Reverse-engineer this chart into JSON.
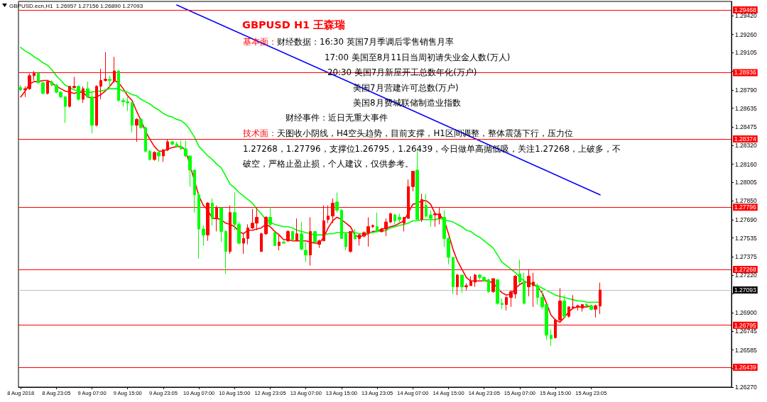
{
  "chart_data": {
    "type": "candlestick",
    "title": "GBPUSD H1 王森瑞",
    "annotations": [
      "GBPUSD.ecn,H1  1.26957 1.27156 1.26890 1.27093",
      "基本面：",
      "财经数据：16:30 英国7月季调后零售销售月率",
      "17:00 美国至8月11日当周初请失业金人数(万人)",
      "20:30 美国7月新屋开工总数年化(万户)",
      "美国7月营建许可总数(万户)",
      "美国8月费城联储制造业指数",
      "财经事件：近日无重大事件",
      "技术面：",
      "天图收小阴线，H4空头趋势，目前支撑，H1区间调整，整体震荡下行，压力位",
      "1.27268，1.27796，支撑位1.26795，1.26439，今日做单高抛低吸，关注1.27268，上破多，不",
      "破空，严格止盈止损，个人建议，仅供参考。"
    ],
    "categories": [
      "8 Aug 2018",
      null,
      null,
      null,
      null,
      null,
      null,
      null,
      "8 Aug 23:05",
      null,
      null,
      null,
      null,
      null,
      null,
      null,
      "9 Aug 07:00",
      null,
      null,
      null,
      null,
      null,
      null,
      null,
      "9 Aug 15:00",
      null,
      null,
      null,
      null,
      null,
      null,
      null,
      "9 Aug 23:05",
      null,
      null,
      null,
      null,
      null,
      null,
      null,
      "10 Aug 07:00",
      null,
      null,
      null,
      null,
      null,
      null,
      null,
      "10 Aug 15:00",
      null,
      null,
      null,
      null,
      null,
      null,
      null,
      "12 Aug 23:05",
      null,
      null,
      null,
      null,
      null,
      null,
      null,
      "13 Aug 07:00",
      null,
      null,
      null,
      null,
      null,
      null,
      null,
      "13 Aug 15:00",
      null,
      null,
      null,
      null,
      null,
      null,
      null,
      "13 Aug 23:05",
      null,
      null,
      null,
      null,
      null,
      null,
      null,
      "14 Aug 07:00",
      null,
      null,
      null,
      null,
      null,
      null,
      null,
      "14 Aug 15:00",
      null,
      null,
      null,
      null,
      null,
      null,
      null,
      "14 Aug 23:05",
      null,
      null,
      null,
      null,
      null,
      null,
      null,
      "15 Aug 07:00",
      null,
      null,
      null,
      null,
      null,
      null,
      null,
      "15 Aug 15:00",
      null,
      null,
      null,
      null,
      null,
      null,
      null,
      "15 Aug 23:05",
      null,
      null,
      null,
      null,
      null,
      null,
      null,
      null,
      null,
      null,
      null,
      null,
      null,
      null,
      null,
      null,
      null,
      null,
      null,
      null,
      null,
      null,
      null,
      null,
      null,
      null,
      null,
      null,
      null,
      null,
      null
    ],
    "ohlc": [
      [
        1.2881,
        1.2883,
        1.2878,
        1.2879
      ],
      [
        1.2879,
        1.2882,
        1.2873,
        1.288
      ],
      [
        1.288,
        1.2893,
        1.2879,
        1.2891
      ],
      [
        1.2891,
        1.2895,
        1.2887,
        1.2893
      ],
      [
        1.2893,
        1.2894,
        1.2884,
        1.2885
      ],
      [
        1.2885,
        1.2886,
        1.2875,
        1.2876
      ],
      [
        1.2876,
        1.2887,
        1.2875,
        1.2886
      ],
      [
        1.2886,
        1.2887,
        1.2882,
        1.2883
      ],
      [
        1.2883,
        1.2884,
        1.2876,
        1.2877
      ],
      [
        1.2877,
        1.2878,
        1.2872,
        1.2873
      ],
      [
        1.2873,
        1.2874,
        1.2851,
        1.2865
      ],
      [
        1.2865,
        1.2882,
        1.2864,
        1.2882
      ],
      [
        1.2881,
        1.289,
        1.288,
        1.2882
      ],
      [
        1.2882,
        1.2883,
        1.287,
        1.2871
      ],
      [
        1.2871,
        1.2882,
        1.2868,
        1.288
      ],
      [
        1.288,
        1.2886,
        1.2872,
        1.2873
      ],
      [
        1.2873,
        1.2878,
        1.2842,
        1.2849
      ],
      [
        1.2849,
        1.2883,
        1.2848,
        1.2882
      ],
      [
        1.2882,
        1.2897,
        1.2871,
        1.2887
      ],
      [
        1.2887,
        1.2911,
        1.2886,
        1.2888
      ],
      [
        1.2888,
        1.2891,
        1.2881,
        1.2887
      ],
      [
        1.2887,
        1.2907,
        1.2885,
        1.2895
      ],
      [
        1.2895,
        1.2896,
        1.2869,
        1.287
      ],
      [
        1.287,
        1.2872,
        1.2865,
        1.2869
      ],
      [
        1.2869,
        1.2873,
        1.2861,
        1.2868
      ],
      [
        1.2868,
        1.2869,
        1.2843,
        1.2849
      ],
      [
        1.2849,
        1.2855,
        1.2835,
        1.2854
      ],
      [
        1.2854,
        1.2855,
        1.2846,
        1.2847
      ],
      [
        1.2847,
        1.2848,
        1.2826,
        1.2827
      ],
      [
        1.2827,
        1.2828,
        1.2819,
        1.282
      ],
      [
        1.282,
        1.2827,
        1.2819,
        1.2826
      ],
      [
        1.2826,
        1.2828,
        1.2818,
        1.2823
      ],
      [
        1.2823,
        1.2829,
        1.2818,
        1.2828
      ],
      [
        1.2828,
        1.2837,
        1.2827,
        1.2835
      ],
      [
        1.2835,
        1.2836,
        1.2832,
        1.2833
      ],
      [
        1.2833,
        1.2835,
        1.283,
        1.2831
      ],
      [
        1.2831,
        1.2836,
        1.2828,
        1.2829
      ],
      [
        1.2829,
        1.2836,
        1.2822,
        1.2823
      ],
      [
        1.2823,
        1.2823,
        1.2797,
        1.2811
      ],
      [
        1.2811,
        1.2811,
        1.2775,
        1.279
      ],
      [
        1.279,
        1.2792,
        1.2736,
        1.2761
      ],
      [
        1.2761,
        1.2764,
        1.2747,
        1.2756
      ],
      [
        1.2756,
        1.2784,
        1.2751,
        1.2783
      ],
      [
        1.2783,
        1.2787,
        1.2764,
        1.277
      ],
      [
        1.277,
        1.2781,
        1.2759,
        1.2779
      ],
      [
        1.2779,
        1.2779,
        1.275,
        1.2759
      ],
      [
        1.2759,
        1.276,
        1.2723,
        1.2742
      ],
      [
        1.2742,
        1.2781,
        1.274,
        1.2775
      ],
      [
        1.2775,
        1.2792,
        1.276,
        1.2765
      ],
      [
        1.2765,
        1.2767,
        1.2748,
        1.2749
      ],
      [
        1.2749,
        1.2757,
        1.274,
        1.2753
      ],
      [
        1.2753,
        1.2765,
        1.2748,
        1.2762
      ],
      [
        1.2762,
        1.2778,
        1.2761,
        1.2766
      ],
      [
        1.2766,
        1.2779,
        1.276,
        1.2771
      ],
      [
        1.2742,
        1.2758,
        1.2742,
        1.2757
      ],
      [
        1.2757,
        1.2772,
        1.2756,
        1.2771
      ],
      [
        1.2771,
        1.278,
        1.2763,
        1.2765
      ],
      [
        1.2758,
        1.2759,
        1.2747,
        1.2747
      ],
      [
        1.2747,
        1.2757,
        1.2743,
        1.275
      ],
      [
        1.275,
        1.2751,
        1.2749,
        1.2749
      ],
      [
        1.2751,
        1.276,
        1.275,
        1.2759
      ],
      [
        1.2759,
        1.2759,
        1.2751,
        1.2752
      ],
      [
        1.2751,
        1.277,
        1.2751,
        1.2757
      ],
      [
        1.2757,
        1.2767,
        1.2743,
        1.2744
      ],
      [
        1.2743,
        1.275,
        1.2733,
        1.2739
      ],
      [
        1.2739,
        1.2771,
        1.273,
        1.2759
      ],
      [
        1.2759,
        1.2759,
        1.2749,
        1.275
      ],
      [
        1.2748,
        1.2752,
        1.2745,
        1.2751
      ],
      [
        1.2751,
        1.2781,
        1.2751,
        1.2768
      ],
      [
        1.2769,
        1.2781,
        1.2766,
        1.2772
      ],
      [
        1.2772,
        1.2787,
        1.2766,
        1.2783
      ],
      [
        1.2784,
        1.2792,
        1.2775,
        1.2777
      ],
      [
        1.2777,
        1.2778,
        1.2753,
        1.2753
      ],
      [
        1.2757,
        1.2758,
        1.2743,
        1.2746
      ],
      [
        1.2742,
        1.2759,
        1.2741,
        1.2759
      ],
      [
        1.2756,
        1.2761,
        1.2752,
        1.2753
      ],
      [
        1.2753,
        1.2757,
        1.2747,
        1.2756
      ],
      [
        1.2755,
        1.2759,
        1.2754,
        1.2758
      ],
      [
        1.2758,
        1.2771,
        1.2746,
        1.2763
      ],
      [
        1.2763,
        1.2765,
        1.2762,
        1.2764
      ],
      [
        1.2763,
        1.2775,
        1.2759,
        1.2759
      ],
      [
        1.2759,
        1.2762,
        1.2758,
        1.2761
      ],
      [
        1.2761,
        1.277,
        1.2755,
        1.2767
      ],
      [
        1.2767,
        1.2775,
        1.2766,
        1.2774
      ],
      [
        1.2773,
        1.2774,
        1.2765,
        1.2768
      ],
      [
        1.2771,
        1.2774,
        1.2766,
        1.2769
      ],
      [
        1.2766,
        1.2771,
        1.2759,
        1.2771
      ],
      [
        1.277,
        1.2803,
        1.277,
        1.2797
      ],
      [
        1.2797,
        1.281,
        1.2793,
        1.281
      ],
      [
        1.2811,
        1.2827,
        1.2769,
        1.2769
      ],
      [
        1.2769,
        1.2791,
        1.2767,
        1.2786
      ],
      [
        1.2781,
        1.2791,
        1.2771,
        1.2772
      ],
      [
        1.2773,
        1.2777,
        1.2763,
        1.277
      ],
      [
        1.2773,
        1.2775,
        1.2763,
        1.2774
      ],
      [
        1.277,
        1.2779,
        1.2765,
        1.2774
      ],
      [
        1.2771,
        1.2777,
        1.2746,
        1.2753
      ],
      [
        1.2753,
        1.2754,
        1.2731,
        1.2737
      ],
      [
        1.2737,
        1.2737,
        1.2706,
        1.2712
      ],
      [
        1.2712,
        1.2723,
        1.2705,
        1.2722
      ],
      [
        1.2722,
        1.2722,
        1.2707,
        1.2712
      ],
      [
        1.2712,
        1.2715,
        1.2709,
        1.2713
      ],
      [
        1.2713,
        1.2721,
        1.2713,
        1.2717
      ],
      [
        1.2716,
        1.2723,
        1.2712,
        1.2722
      ],
      [
        1.2722,
        1.2723,
        1.2718,
        1.272
      ],
      [
        1.272,
        1.2721,
        1.2717,
        1.2717
      ],
      [
        1.2718,
        1.2719,
        1.2707,
        1.2708
      ],
      [
        1.2708,
        1.2719,
        1.2707,
        1.2719
      ],
      [
        1.2718,
        1.2718,
        1.2697,
        1.2698
      ],
      [
        1.2698,
        1.2702,
        1.2693,
        1.2697
      ],
      [
        1.2697,
        1.2704,
        1.2692,
        1.2703
      ],
      [
        1.2703,
        1.2709,
        1.2695,
        1.2708
      ],
      [
        1.2706,
        1.2722,
        1.2702,
        1.2721
      ],
      [
        1.2723,
        1.2735,
        1.2714,
        1.2716
      ],
      [
        1.2716,
        1.2724,
        1.2697,
        1.2698
      ],
      [
        1.2712,
        1.2727,
        1.2704,
        1.2721
      ],
      [
        1.2713,
        1.2724,
        1.2695,
        1.2716
      ],
      [
        1.2713,
        1.2715,
        1.2697,
        1.2703
      ],
      [
        1.2703,
        1.2709,
        1.2693,
        1.2695
      ],
      [
        1.2697,
        1.2697,
        1.2667,
        1.2671
      ],
      [
        1.2671,
        1.2676,
        1.2662,
        1.2668
      ],
      [
        1.2669,
        1.2685,
        1.2668,
        1.2684
      ],
      [
        1.2684,
        1.2711,
        1.2683,
        1.27
      ],
      [
        1.27,
        1.2705,
        1.2685,
        1.2687
      ],
      [
        1.2687,
        1.2695,
        1.2686,
        1.2695
      ],
      [
        1.2694,
        1.2705,
        1.2693,
        1.2695
      ],
      [
        1.2695,
        1.2697,
        1.2692,
        1.2696
      ],
      [
        1.2694,
        1.2697,
        1.2691,
        1.2697
      ],
      [
        1.2697,
        1.2698,
        1.2695,
        1.2696
      ],
      [
        1.2696,
        1.2697,
        1.2692,
        1.2693
      ],
      [
        1.2693,
        1.2697,
        1.2686,
        1.2696
      ],
      [
        1.26957,
        1.27156,
        1.2689,
        1.27093
      ],
      null,
      null,
      null,
      null,
      null,
      null,
      null,
      null,
      null,
      null,
      null,
      null,
      null,
      null,
      null,
      null,
      null,
      null,
      null,
      null,
      null,
      null,
      null,
      null,
      null,
      null,
      null,
      null,
      null
    ],
    "colors": [
      "#00ff00",
      "#ff0000",
      "#ff0000",
      "#ff0000",
      "#00ff00",
      "#00ff00",
      "#ff0000",
      "#00ff00",
      "#00ff00",
      "#00ff00",
      "#00ff00",
      "#ff0000",
      "#ff0000",
      "#00ff00",
      "#ff0000",
      "#00ff00",
      "#00ff00",
      "#ff0000",
      "#ff0000",
      "#ff0000",
      "#00ff00",
      "#ff0000",
      "#00ff00",
      "#00ff00",
      "#00ff00",
      "#00ff00",
      "#ff0000",
      "#00ff00",
      "#00ff00",
      "#00ff00",
      "#ff0000",
      "#00ff00",
      "#ff0000",
      "#ff0000",
      "#00ff00",
      "#00ff00",
      "#00ff00",
      "#00ff00",
      "#00ff00",
      "#00ff00",
      "#00ff00",
      "#00ff00",
      "#ff0000",
      "#00ff00",
      "#ff0000",
      "#00ff00",
      "#00ff00",
      "#ff0000",
      "#00ff00",
      "#00ff00",
      "#ff0000",
      "#ff0000",
      "#ff0000",
      "#ff0000",
      "#ff0000",
      "#ff0000",
      "#00ff00",
      "#00ff00",
      "#ff0000",
      "#00ff00",
      "#ff0000",
      "#00ff00",
      "#ff0000",
      "#00ff00",
      "#00ff00",
      "#ff0000",
      "#00ff00",
      "#ff0000",
      "#ff0000",
      "#ff0000",
      "#ff0000",
      "#00ff00",
      "#00ff00",
      "#00ff00",
      "#ff0000",
      "#00ff00",
      "#ff0000",
      "#ff0000",
      "#ff0000",
      "#ff0000",
      "#00ff00",
      "#ff0000",
      "#ff0000",
      "#ff0000",
      "#00ff00",
      "#00ff00",
      "#ff0000",
      "#ff0000",
      "#ff0000",
      "#00ff00",
      "#ff0000",
      "#00ff00",
      "#00ff00",
      "#ff0000",
      "#ff0000",
      "#00ff00",
      "#00ff00",
      "#00ff00",
      "#ff0000",
      "#00ff00",
      "#ff0000",
      "#ff0000",
      "#ff0000",
      "#00ff00",
      "#00ff00",
      "#00ff00",
      "#ff0000",
      "#00ff00",
      "#00ff00",
      "#ff0000",
      "#ff0000",
      "#ff0000",
      "#00ff00",
      "#00ff00",
      "#ff0000",
      "#ff0000",
      "#00ff00",
      "#00ff00",
      "#00ff00",
      "#00ff00",
      "#ff0000",
      "#ff0000",
      "#00ff00",
      "#ff0000",
      "#ff0000",
      "#ff0000",
      "#ff0000",
      "#00ff00",
      "#00ff00",
      "#ff0000",
      "#ff0000",
      null,
      null,
      null,
      null,
      null,
      null,
      null,
      null,
      null,
      null,
      null,
      null,
      null,
      null,
      null,
      null,
      null,
      null,
      null,
      null,
      null,
      null,
      null,
      null,
      null,
      null,
      null,
      null,
      null
    ],
    "series": [
      {
        "type": "line",
        "color": "#ff0000",
        "values": [
          1.2873,
          1.2878,
          1.2884,
          1.2886,
          1.2886,
          1.2887,
          1.2887,
          1.2885,
          1.2882,
          1.288,
          1.2878,
          1.2877,
          1.2876,
          1.2877,
          1.2877,
          1.2873,
          1.2872,
          1.2873,
          1.2875,
          1.2878,
          1.2882,
          1.2887,
          1.2885,
          1.288,
          1.2874,
          1.287,
          1.2861,
          1.2853,
          1.2844,
          1.2837,
          1.2831,
          1.2827,
          1.2827,
          1.2829,
          1.283,
          1.2831,
          1.2831,
          1.2828,
          null,
          null,
          1.2789,
          1.2781,
          1.2777,
          1.277,
          1.277,
          1.2769,
          1.2766,
          1.2765,
          1.2763,
          1.2759,
          1.2757,
          1.276,
          1.276,
          1.2761,
          1.2762,
          1.2765,
          1.2763,
          1.2759,
          1.2756,
          1.2752,
          1.2752,
          1.2751,
          1.2751,
          1.2751,
          1.2751,
          1.275,
          1.2749,
          1.2749,
          1.2754,
          1.2762,
          1.2768,
          1.2771,
          1.2769,
          1.2766,
          1.2763,
          1.2756,
          1.2754,
          1.2756,
          1.2757,
          1.2759,
          1.2759,
          1.2761,
          1.2762,
          1.2763,
          1.2764,
          1.2766,
          1.2768,
          1.2775,
          1.2782,
          1.2783,
          1.2785,
          1.2785,
          1.2782,
          1.2774,
          1.2773,
          1.2769,
          1.2757,
          1.2744,
          1.2734,
          1.2727,
          1.272,
          1.2717,
          1.2717,
          1.2717,
          1.2717,
          1.2717,
          1.2715,
          1.2711,
          1.2707,
          1.2705,
          1.2706,
          1.2711,
          1.2714,
          1.2716,
          1.2716,
          1.2714,
          1.2712,
          1.2707,
          1.2698,
          1.2688,
          1.2684,
          1.2682,
          1.2686,
          1.2691,
          1.2694,
          1.2695,
          1.2695,
          1.2695,
          1.2696,
          null,
          null,
          null,
          null,
          null,
          null,
          null,
          null,
          null,
          null,
          null,
          null,
          null,
          null,
          null,
          null,
          null,
          null,
          null,
          null,
          null,
          null,
          null,
          null,
          null,
          null,
          null,
          null,
          null,
          null,
          null
        ]
      },
      {
        "type": "line",
        "color": "#00ff00",
        "values": [
          1.2915,
          1.2912,
          1.291,
          1.2907,
          1.2905,
          1.2902,
          1.29,
          1.2896,
          1.2891,
          1.2887,
          1.2883,
          1.2881,
          1.2879,
          1.2878,
          1.2878,
          1.2877,
          1.2877,
          1.2878,
          1.2878,
          1.2879,
          1.288,
          1.288,
          1.288,
          1.2878,
          1.2877,
          1.2875,
          1.2874,
          1.2871,
          1.2869,
          1.2867,
          1.2864,
          1.2862,
          1.2859,
          1.2857,
          1.2856,
          1.2854,
          1.2853,
          1.285,
          1.2845,
          1.2839,
          1.2831,
          1.2827,
          1.2823,
          1.282,
          1.2816,
          1.2813,
          1.2806,
          1.2799,
          1.2796,
          1.2792,
          1.2789,
          1.2786,
          1.2783,
          1.2778,
          1.2774,
          1.2769,
          1.2767,
          1.2765,
          1.2764,
          1.2763,
          1.2763,
          1.2762,
          1.276,
          1.2759,
          1.2758,
          1.2757,
          1.2756,
          1.2756,
          1.2756,
          1.2757,
          1.2757,
          1.2758,
          1.2758,
          1.2758,
          1.2758,
          1.2758,
          1.2757,
          1.2757,
          1.2758,
          1.2758,
          1.2759,
          1.2759,
          1.276,
          1.2762,
          1.2763,
          1.2764,
          1.2765,
          1.2766,
          1.2768,
          1.2768,
          1.2769,
          1.2769,
          1.2769,
          1.2769,
          1.277,
          1.2769,
          1.2768,
          1.2767,
          1.2765,
          1.2763,
          1.276,
          1.2759,
          1.2756,
          1.2754,
          1.2751,
          1.2748,
          1.2745,
          1.2739,
          1.2733,
          1.273,
          1.2727,
          1.2724,
          1.272,
          1.2717,
          1.2715,
          1.2714,
          1.2713,
          1.2711,
          1.2709,
          1.2707,
          1.2705,
          1.2704,
          1.2703,
          1.2702,
          1.2701,
          1.27,
          1.27,
          1.2699,
          1.2699,
          1.2699,
          1.2699,
          null,
          null,
          null,
          null,
          null,
          null,
          null,
          null,
          null,
          null,
          null,
          null,
          null,
          null,
          null,
          null,
          null,
          null,
          null,
          null,
          null,
          null,
          null,
          null,
          null,
          null,
          null,
          null,
          null
        ]
      },
      {
        "type": "line",
        "color": "#0000ff",
        "values": [
          null,
          null,
          null,
          null,
          null,
          null,
          null,
          null,
          null,
          null,
          null,
          null,
          null,
          null,
          null,
          null,
          null,
          null,
          null,
          null,
          null,
          null,
          null,
          null,
          null,
          null,
          null,
          null,
          null,
          null,
          null,
          null,
          null,
          null,
          null,
          1.2951,
          null,
          null,
          null,
          null,
          null,
          null,
          null,
          null,
          null,
          null,
          null,
          null,
          null,
          null,
          null,
          null,
          null,
          null,
          null,
          null,
          null,
          null,
          null,
          null,
          null,
          null,
          null,
          null,
          null,
          null,
          null,
          null,
          null,
          null,
          null,
          null,
          null,
          null,
          null,
          null,
          null,
          null,
          null,
          null,
          1.2875,
          null,
          null,
          null,
          null,
          null,
          null,
          null,
          null,
          null,
          null,
          null,
          null,
          null,
          null,
          null,
          null,
          null,
          null,
          null,
          null,
          null,
          null,
          null,
          null,
          null,
          null,
          null,
          null,
          null,
          null,
          null,
          null,
          null,
          null,
          null,
          null,
          null,
          null,
          null,
          null,
          null,
          null,
          null,
          null,
          null,
          null,
          null,
          null,
          null,
          1.279,
          null,
          null,
          null,
          null,
          null,
          null,
          null,
          null,
          null,
          null,
          null,
          null,
          null,
          null,
          null,
          null,
          null,
          null,
          null,
          null,
          null,
          null,
          null,
          null,
          null,
          null,
          null,
          null,
          null
        ]
      }
    ],
    "ylim": [
      1.2627,
      1.2954
    ],
    "yticks": [
      {
        "value": 1.2627,
        "label": "1.26270"
      },
      {
        "value": 1.2643,
        "label": null
      },
      1.26585,
      1.26745,
      {
        "value": 1.269,
        "label": "1.26900"
      },
      {
        "value": 1.2706,
        "label": null
      },
      {
        "value": 1.2722,
        "label": "1.27220"
      },
      1.27375,
      1.27535,
      {
        "value": 1.2769,
        "label": "1.27690"
      },
      {
        "value": 1.2785,
        "label": "1.27850"
      },
      1.28005,
      {
        "value": 1.2816,
        "label": "1.28160"
      },
      {
        "value": 1.2832,
        "label": "1.28320"
      },
      1.28475,
      1.28635,
      {
        "value": 1.2879,
        "label": "1.28790"
      },
      {
        "value": 1.2895,
        "label": null
      },
      1.29105,
      {
        "value": 1.2926,
        "label": "1.29260"
      },
      {
        "value": 1.2942,
        "label": "1.29420"
      }
    ],
    "ref_lines": [
      {
        "axis": "y",
        "value": 1.29468,
        "label": "1.29468",
        "color": "#ff0000"
      },
      {
        "axis": "y",
        "value": 1.28936,
        "label": "1.28936",
        "color": "#ff0000"
      },
      {
        "axis": "y",
        "value": 1.28374,
        "label": "1.28374",
        "color": "#ff0000"
      },
      {
        "axis": "y",
        "value": 1.27796,
        "label": "1.27796",
        "color": "#ff0000"
      },
      {
        "axis": "y",
        "value": 1.27268,
        "label": "1.27268",
        "color": "#ff0000"
      },
      {
        "axis": "y",
        "value": 1.27093,
        "label": "1.27093",
        "color": "#c0c0c0"
      },
      {
        "axis": "y",
        "value": 1.26795,
        "label": "1.26795",
        "color": "#ff0000"
      },
      {
        "axis": "y",
        "value": 1.26439,
        "label": "1.26439",
        "color": "#ff0000"
      }
    ],
    "grid": false,
    "marker": "none"
  }
}
